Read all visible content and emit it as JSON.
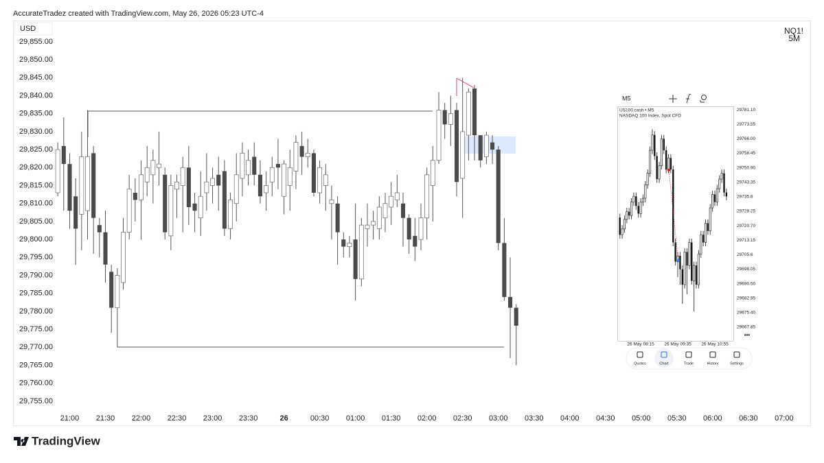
{
  "header": {
    "credit": "AccurateTradez created with TradingView.com, May 26, 2026 05:23 UTC-4"
  },
  "chart_labels": {
    "currency": "USD",
    "symbol": "NQ1!",
    "interval": "5M"
  },
  "inset": {
    "interval": "M5",
    "symbol_line": "US100.cash • M5",
    "description": "NASDAQ 100 Index, Spot CFD",
    "nav": [
      "Quotes",
      "Chart",
      "Trade",
      "History",
      "Settings"
    ],
    "more": "•••"
  },
  "footer": {
    "logo": "TradingView"
  },
  "chart_data": [
    {
      "type": "candlestick",
      "up_color": "#ffffff",
      "down_color": "#4a4a4a",
      "x": [
        "20:50",
        "20:55",
        "21:00",
        "21:05",
        "21:10",
        "21:15",
        "21:20",
        "21:25",
        "21:30",
        "21:35",
        "21:40",
        "21:45",
        "21:50",
        "21:55",
        "22:00",
        "22:05",
        "22:10",
        "22:15",
        "22:20",
        "22:25",
        "22:30",
        "22:35",
        "22:40",
        "22:45",
        "22:50",
        "22:55",
        "23:00",
        "23:05",
        "23:10",
        "23:15",
        "23:20",
        "23:25",
        "23:30",
        "23:35",
        "23:40",
        "23:45",
        "23:50",
        "23:55",
        "00:00",
        "00:05",
        "00:10",
        "00:15",
        "00:20",
        "00:25",
        "00:30",
        "00:35",
        "00:40",
        "00:45",
        "00:50",
        "00:55",
        "01:00",
        "01:05",
        "01:10",
        "01:15",
        "01:20",
        "01:25",
        "01:30",
        "01:35",
        "01:40",
        "01:45",
        "01:50",
        "01:55",
        "02:00",
        "02:05",
        "02:10",
        "02:15",
        "02:20",
        "02:25",
        "02:30",
        "02:35",
        "02:40",
        "02:45",
        "02:50",
        "02:55",
        "03:00",
        "03:05",
        "03:10",
        "03:15"
      ],
      "open": [
        29813,
        29826,
        29821,
        29812,
        29807,
        29808,
        29824,
        29804,
        29802,
        29791,
        29781,
        29788,
        29802,
        29813,
        29811,
        29816,
        29818,
        29820,
        29818,
        29801,
        29814,
        29815,
        29820,
        29810,
        29806,
        29813,
        29815,
        29818,
        29819,
        29803,
        29810,
        29817,
        29818,
        29823,
        29818,
        29813,
        29816,
        29821,
        29812,
        29815,
        29819,
        29826,
        29823,
        29824,
        29813,
        29815,
        29810,
        29810,
        29800,
        29798,
        29800,
        29789,
        29803,
        29804,
        29803,
        29806,
        29809,
        29811,
        29810,
        29806,
        29801,
        29800,
        29806,
        29815,
        29822,
        29836,
        29832,
        29836,
        29817,
        29829,
        29842,
        29829,
        29823,
        29827,
        29825,
        29799,
        29784,
        29781
      ],
      "high": [
        29827,
        29834,
        29824,
        29817,
        29830,
        29836,
        29826,
        29806,
        29808,
        29793,
        29792,
        29806,
        29818,
        29817,
        29822,
        29826,
        29825,
        29830,
        29820,
        29818,
        29818,
        29823,
        29826,
        29813,
        29819,
        29824,
        29820,
        29823,
        29822,
        29813,
        29824,
        29827,
        29825,
        29827,
        29822,
        29819,
        29823,
        29828,
        29822,
        29825,
        29829,
        29830,
        29828,
        29825,
        29822,
        29821,
        29815,
        29812,
        29802,
        29801,
        29810,
        29806,
        29810,
        29808,
        29812,
        29813,
        29816,
        29818,
        29813,
        29807,
        29806,
        29810,
        29820,
        29826,
        29841,
        29838,
        29840,
        29838,
        29845,
        29842,
        29843,
        29829,
        29830,
        29829,
        29826,
        29806,
        29795,
        29782
      ],
      "low": [
        29812,
        29808,
        29803,
        29793,
        29797,
        29800,
        29796,
        29795,
        29788,
        29774,
        29770,
        29786,
        29800,
        29805,
        29800,
        29812,
        29810,
        29815,
        29800,
        29797,
        29806,
        29802,
        29804,
        29802,
        29801,
        29808,
        29810,
        29808,
        29801,
        29800,
        29805,
        29812,
        29815,
        29815,
        29810,
        29808,
        29812,
        29814,
        29807,
        29808,
        29814,
        29818,
        29820,
        29812,
        29810,
        29808,
        29800,
        29793,
        29795,
        29795,
        29783,
        29787,
        29798,
        29800,
        29800,
        29802,
        29804,
        29809,
        29798,
        29796,
        29794,
        29797,
        29800,
        29805,
        29821,
        29828,
        29826,
        29812,
        29806,
        29822,
        29822,
        29820,
        29821,
        29821,
        29797,
        29783,
        29767,
        29765
      ],
      "close": [
        29825,
        29821,
        29808,
        29803,
        29823,
        29823,
        29806,
        29802,
        29793,
        29781,
        29790,
        29802,
        29814,
        29811,
        29818,
        29820,
        29822,
        29821,
        29802,
        29815,
        29816,
        29820,
        29809,
        29808,
        29812,
        29816,
        29817,
        29815,
        29803,
        29811,
        29818,
        29824,
        29822,
        29818,
        29812,
        29815,
        29820,
        29820,
        29821,
        29820,
        29827,
        29823,
        29824,
        29813,
        29820,
        29818,
        29811,
        29802,
        29798,
        29799,
        29789,
        29804,
        29804,
        29805,
        29809,
        29810,
        29812,
        29813,
        29806,
        29800,
        29798,
        29806,
        29818,
        29822,
        29836,
        29832,
        29835,
        29816,
        29830,
        29841,
        29829,
        29822,
        29829,
        29825,
        29799,
        29784,
        29781,
        29776
      ],
      "xlim": [
        "20:13",
        "07:22"
      ],
      "xticks": [
        "21:00",
        "21:30",
        "22:00",
        "22:30",
        "23:00",
        "23:30",
        {
          "value": "00:00",
          "label": "26"
        },
        "00:30",
        "01:00",
        "01:30",
        "02:00",
        "02:30",
        "03:00",
        "03:30",
        "04:00",
        "04:30",
        "05:00",
        "05:30",
        "06:00",
        "06:30",
        "07:00"
      ],
      "ylim": [
        29748.3,
        29860.9
      ],
      "yticks": [
        {
          "value": 29855,
          "label": "29,855.00"
        },
        {
          "value": 29850,
          "label": "29,850.00"
        },
        {
          "value": 29845,
          "label": "29,845.00"
        },
        {
          "value": 29840,
          "label": "29,840.00"
        },
        {
          "value": 29835,
          "label": "29,835.00"
        },
        {
          "value": 29830,
          "label": "29,830.00"
        },
        {
          "value": 29825,
          "label": "29,825.00"
        },
        {
          "value": 29820,
          "label": "29,820.00"
        },
        {
          "value": 29815,
          "label": "29,815.00"
        },
        {
          "value": 29810,
          "label": "29,810.00"
        },
        {
          "value": 29805,
          "label": "29,805.00"
        },
        {
          "value": 29800,
          "label": "29,800.00"
        },
        {
          "value": 29795,
          "label": "29,795.00"
        },
        {
          "value": 29790,
          "label": "29,790.00"
        },
        {
          "value": 29785,
          "label": "29,785.00"
        },
        {
          "value": 29780,
          "label": "29,780.00"
        },
        {
          "value": 29775,
          "label": "29,775.00"
        },
        {
          "value": 29770,
          "label": "29,770.00"
        },
        {
          "value": 29765,
          "label": "29,765.00"
        },
        {
          "value": 29760,
          "label": "29,760.00"
        },
        {
          "value": 29755,
          "label": "29,755.00"
        }
      ]
    },
    {
      "type": "candlestick",
      "up_color": "#ffffff",
      "down_color": "#111111",
      "x": [
        "07:30",
        "07:35",
        "07:40",
        "07:45",
        "07:50",
        "07:55",
        "08:00",
        "08:05",
        "08:10",
        "08:15",
        "08:20",
        "08:25",
        "08:30",
        "08:35",
        "08:40",
        "08:45",
        "08:50",
        "08:55",
        "09:00",
        "09:05",
        "09:10",
        "09:15",
        "09:20",
        "09:25",
        "09:30",
        "09:35",
        "09:40",
        "09:45",
        "09:50",
        "09:55",
        "10:00",
        "10:05",
        "10:10",
        "10:15",
        "10:20",
        "10:25",
        "10:30",
        "10:35",
        "10:40",
        "10:45",
        "10:50",
        "10:55",
        "11:00",
        "11:05",
        "11:10",
        "11:15",
        "11:20"
      ],
      "open": [
        29725,
        29716,
        29719,
        29724,
        29728,
        29726,
        29733,
        29736,
        29731,
        29727,
        29733,
        29735,
        29742,
        29748,
        29760,
        29768,
        29757,
        29745,
        29752,
        29766,
        29760,
        29750,
        29756,
        29750,
        29712,
        29702,
        29705,
        29698,
        29690,
        29707,
        29700,
        29712,
        29692,
        29700,
        29690,
        29706,
        29716,
        29712,
        29722,
        29718,
        29730,
        29737,
        29733,
        29740,
        29745,
        29748,
        29738
      ],
      "high": [
        29727,
        29721,
        29726,
        29730,
        29730,
        29735,
        29738,
        29738,
        29733,
        29735,
        29737,
        29744,
        29750,
        29762,
        29771,
        29770,
        29759,
        29754,
        29768,
        29768,
        29762,
        29758,
        29758,
        29752,
        29714,
        29707,
        29707,
        29700,
        29709,
        29709,
        29714,
        29714,
        29702,
        29702,
        29708,
        29718,
        29718,
        29724,
        29724,
        29732,
        29739,
        29739,
        29742,
        29747,
        29750,
        29750,
        29740
      ],
      "low": [
        29714,
        29714,
        29717,
        29722,
        29724,
        29724,
        29731,
        29729,
        29725,
        29725,
        29731,
        29733,
        29740,
        29746,
        29758,
        29755,
        29743,
        29743,
        29750,
        29758,
        29748,
        29748,
        29748,
        29710,
        29700,
        29694,
        29690,
        29680,
        29688,
        29685,
        29698,
        29690,
        29676,
        29688,
        29688,
        29704,
        29710,
        29710,
        29716,
        29716,
        29728,
        29731,
        29731,
        29738,
        29743,
        29736,
        29734
      ],
      "close": [
        29716,
        29719,
        29724,
        29728,
        29726,
        29733,
        29736,
        29731,
        29727,
        29733,
        29735,
        29742,
        29748,
        29760,
        29768,
        29757,
        29745,
        29752,
        29766,
        29760,
        29750,
        29756,
        29750,
        29712,
        29702,
        29705,
        29698,
        29690,
        29707,
        29700,
        29712,
        29692,
        29700,
        29690,
        29706,
        29716,
        29712,
        29722,
        29718,
        29730,
        29737,
        29733,
        29740,
        29745,
        29748,
        29738,
        29736
      ],
      "xlim": [
        "07:26",
        "11:35"
      ],
      "xticks": [
        {
          "value": "08:15",
          "label": "26 May 08:15"
        },
        {
          "value": "09:35",
          "label": "26 May 09:35"
        },
        {
          "value": "10:55",
          "label": "26 May 10:55"
        }
      ],
      "ylim": [
        29660.7,
        29782.9
      ],
      "yticks": [
        {
          "value": 29781.1,
          "label": "29781.10"
        },
        29773.55,
        {
          "value": 29766,
          "label": "29766.00"
        },
        29758.45,
        {
          "value": 29750.9,
          "label": "29750.90"
        },
        29743.35,
        29735.8,
        29728.25,
        {
          "value": 29720.7,
          "label": "29720.70"
        },
        29713.15,
        29705.6,
        29698.05,
        {
          "value": 29690.5,
          "label": "29690.50"
        },
        29682.95,
        {
          "value": 29675.4,
          "label": "29675.40"
        },
        29667.85
      ]
    }
  ]
}
